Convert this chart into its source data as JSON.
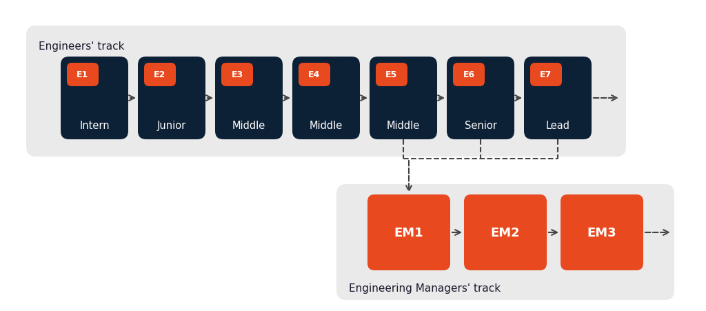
{
  "bg_color": "#ffffff",
  "track1_bg": "#eaeaea",
  "track2_bg": "#eaeaea",
  "dark_box_color": "#0d2136",
  "orange_color": "#e8491e",
  "white_text": "#ffffff",
  "dark_text": "#1a1a2e",
  "arrow_color": "#444444",
  "track1_label": "Engineers' track",
  "track2_label": "Engineering Managers' track",
  "engineer_nodes": [
    {
      "code": "E1",
      "label": "Intern"
    },
    {
      "code": "E2",
      "label": "Junior"
    },
    {
      "code": "E3",
      "label": "Middle"
    },
    {
      "code": "E4",
      "label": "Middle"
    },
    {
      "code": "E5",
      "label": "Middle"
    },
    {
      "code": "E6",
      "label": "Senior"
    },
    {
      "code": "E7",
      "label": "Lead"
    }
  ],
  "manager_nodes": [
    {
      "code": "EM1"
    },
    {
      "code": "EM2"
    },
    {
      "code": "EM3"
    }
  ]
}
